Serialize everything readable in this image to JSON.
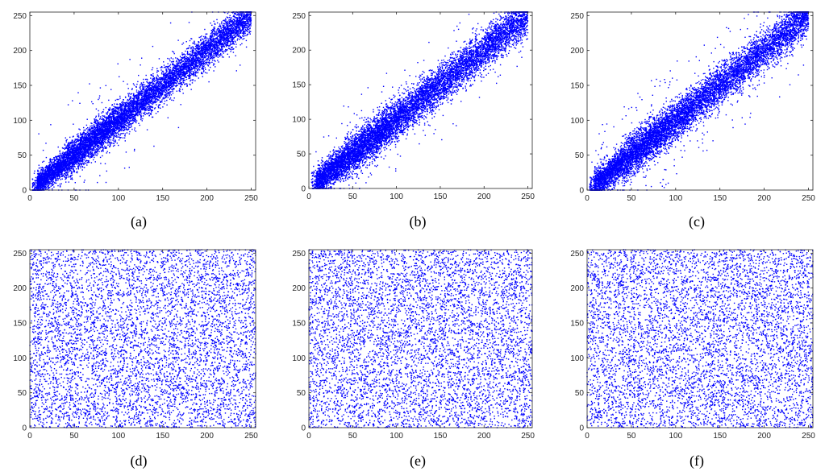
{
  "colors": {
    "points": "#0000ff",
    "axes": "#262626",
    "background": "#ffffff"
  },
  "chart_data": [
    {
      "type": "scatter",
      "label": "(a)",
      "pattern": "diagonal",
      "spread": 12,
      "outliers": 0.012,
      "n_points": 9000,
      "xlim": [
        0,
        255
      ],
      "ylim": [
        0,
        255
      ],
      "xticks": [
        0,
        50,
        100,
        150,
        200,
        250
      ],
      "yticks": [
        0,
        50,
        100,
        150,
        200,
        250
      ],
      "grid": false
    },
    {
      "type": "scatter",
      "label": "(b)",
      "pattern": "diagonal",
      "spread": 14,
      "outliers": 0.015,
      "n_points": 9000,
      "xlim": [
        0,
        255
      ],
      "ylim": [
        0,
        255
      ],
      "xticks": [
        0,
        50,
        100,
        150,
        200,
        250
      ],
      "yticks": [
        0,
        50,
        100,
        150,
        200,
        250
      ],
      "grid": false
    },
    {
      "type": "scatter",
      "label": "(c)",
      "pattern": "diagonal",
      "spread": 14,
      "outliers": 0.03,
      "n_points": 9000,
      "xlim": [
        0,
        255
      ],
      "ylim": [
        0,
        255
      ],
      "xticks": [
        0,
        50,
        100,
        150,
        200,
        250
      ],
      "yticks": [
        0,
        50,
        100,
        150,
        200,
        250
      ],
      "grid": false
    },
    {
      "type": "scatter",
      "label": "(d)",
      "pattern": "uniform",
      "n_points": 6000,
      "xlim": [
        0,
        255
      ],
      "ylim": [
        0,
        255
      ],
      "xticks": [
        0,
        50,
        100,
        150,
        200,
        250
      ],
      "yticks": [
        0,
        50,
        100,
        150,
        200,
        250
      ],
      "grid": false
    },
    {
      "type": "scatter",
      "label": "(e)",
      "pattern": "uniform",
      "n_points": 6000,
      "xlim": [
        0,
        255
      ],
      "ylim": [
        0,
        255
      ],
      "xticks": [
        0,
        50,
        100,
        150,
        200,
        250
      ],
      "yticks": [
        0,
        50,
        100,
        150,
        200,
        250
      ],
      "grid": false
    },
    {
      "type": "scatter",
      "label": "(f)",
      "pattern": "uniform",
      "n_points": 6000,
      "xlim": [
        0,
        255
      ],
      "ylim": [
        0,
        255
      ],
      "xticks": [
        0,
        50,
        100,
        150,
        200,
        250
      ],
      "yticks": [
        0,
        50,
        100,
        150,
        200,
        250
      ],
      "grid": false
    }
  ]
}
